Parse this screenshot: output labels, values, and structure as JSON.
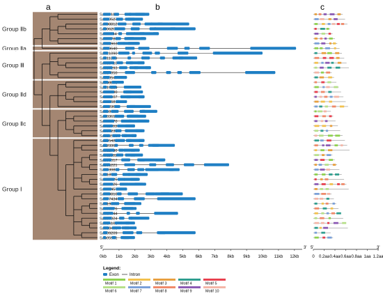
{
  "panels": {
    "a": "a",
    "b": "b",
    "c": "c"
  },
  "genes": [
    "Sau05111",
    "Sau00527",
    "Sau08812",
    "Sau06201",
    "Sau11144",
    "Sau12788",
    "Sau21903",
    "Sau09640",
    "Sau21090",
    "Sau11389",
    "Sau18413",
    "Sau19293",
    "Sau14050",
    "Sau10547",
    "Sau08898",
    "Sau19229",
    "Sau10490",
    "Sau14107",
    "Sau00681",
    "Sau22361",
    "Sau10000",
    "Sau03613",
    "Sau09070",
    "Sau11703",
    "Sau07238",
    "Sau15580",
    "Sau05425",
    "Sau23397",
    "Sau12780",
    "Sau11082",
    "Sau06017",
    "Sau05221",
    "Sau03083",
    "Sau18513",
    "Sau16525",
    "Sau16526",
    "Sau12457",
    "Sau00810",
    "Sau07434",
    "Sau19106",
    "Sau08876",
    "Sau14444",
    "Sau07824",
    "Sau14103",
    "Sau10493",
    "Sau09209",
    "Sau05901"
  ],
  "gene_lengths_kb": [
    2.9,
    2.5,
    5.4,
    5.8,
    3.5,
    2.7,
    2.3,
    12.1,
    10.0,
    5.9,
    2.6,
    3.0,
    10.8,
    1.5,
    1.3,
    2.4,
    2.5,
    2.6,
    1.5,
    3.0,
    3.4,
    2.7,
    2.9,
    2.0,
    2.6,
    2.1,
    2.6,
    4.5,
    2.3,
    2.5,
    3.9,
    7.9,
    4.8,
    2.8,
    2.3,
    2.7,
    1.5,
    5.0,
    5.8,
    2.4,
    2.1,
    4.7,
    2.9,
    2.0,
    2.1,
    5.8,
    2.0
  ],
  "groups": [
    {
      "label": "Group Ⅱb",
      "start": 0,
      "end": 6
    },
    {
      "label": "Group Ⅱa",
      "start": 7,
      "end": 7
    },
    {
      "label": "Group Ⅲ",
      "start": 8,
      "end": 13
    },
    {
      "label": "Group Ⅱd",
      "start": 14,
      "end": 19
    },
    {
      "label": "Group Ⅱc",
      "start": 20,
      "end": 25
    },
    {
      "label": "Group Ⅰ",
      "start": 26,
      "end": 46
    }
  ],
  "gene_axis": {
    "start": "5'",
    "end": "3'",
    "ticks": [
      "0kb",
      "1kb",
      "2kb",
      "3kb",
      "4kb",
      "5kb",
      "6kb",
      "7kb",
      "8kb",
      "9kb",
      "10kb",
      "11kb",
      "12kb"
    ],
    "max_kb": 12.4
  },
  "motif_axis": {
    "start": "5'",
    "end": "3'",
    "ticks": [
      "0",
      "0.2aa",
      "0.4aa",
      "0.6aa",
      "0.8aa",
      "1aa",
      "1.2aa"
    ]
  },
  "legend": {
    "title": "Legend:",
    "exon": "Exon",
    "intron": "Intron",
    "motifs": [
      {
        "label": "Motif 1",
        "color": "#8fd14f"
      },
      {
        "label": "Motif 2",
        "color": "#f2c14e"
      },
      {
        "label": "Motif 3",
        "color": "#e8a040"
      },
      {
        "label": "Motif 4",
        "color": "#2f9e8f"
      },
      {
        "label": "Motif 5",
        "color": "#e8414f"
      },
      {
        "label": "Motif 6",
        "color": "#b7e08a"
      },
      {
        "label": "Motif 7",
        "color": "#7aa0d8"
      },
      {
        "label": "Motif 8",
        "color": "#f08a6a"
      },
      {
        "label": "Motif 9",
        "color": "#8c5bb5"
      },
      {
        "label": "Motif 10",
        "color": "#f4b6a8"
      }
    ]
  },
  "colors": {
    "exon": "#1f7fc4",
    "tree_bg": "#a48672",
    "branch": "#111111"
  }
}
